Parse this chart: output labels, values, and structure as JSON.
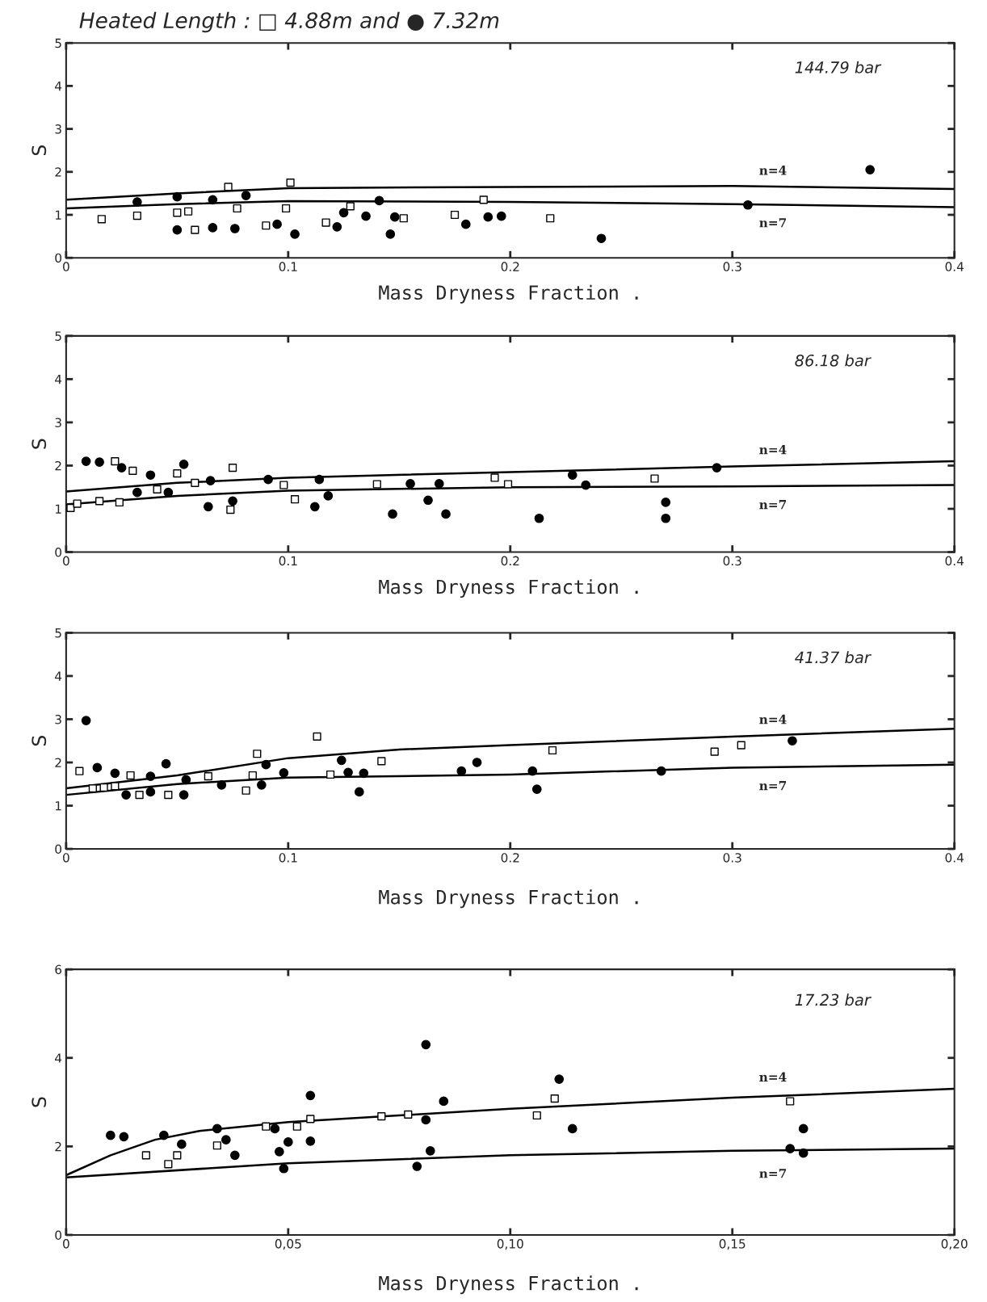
{
  "chart_data": [
    {
      "type": "scatter",
      "title": "Heated Length : □ 4.88m and ● 7.32m",
      "xlabel": "Mass Dryness Fraction .",
      "ylabel": "S",
      "annotations": [
        "144.79 bar"
      ],
      "xlim": [
        0,
        0.4
      ],
      "xticks": [
        0,
        0.1,
        0.2,
        0.3,
        0.4
      ],
      "ylim": [
        0,
        5
      ],
      "yticks": [
        0,
        1,
        2,
        3,
        4,
        5
      ],
      "grid": false,
      "legend": false,
      "series": [
        {
          "marker": "square",
          "color": "#000000",
          "x": [
            0.016,
            0.032,
            0.05,
            0.055,
            0.058,
            0.073,
            0.077,
            0.09,
            0.099,
            0.101,
            0.117,
            0.128,
            0.152,
            0.175,
            0.188,
            0.218
          ],
          "values": [
            0.9,
            0.98,
            1.05,
            1.08,
            0.65,
            1.65,
            1.15,
            0.75,
            1.15,
            1.75,
            0.82,
            1.2,
            0.92,
            1.0,
            1.35,
            0.92
          ]
        },
        {
          "marker": "circle",
          "color": "#000000",
          "x": [
            0.032,
            0.05,
            0.05,
            0.066,
            0.066,
            0.076,
            0.081,
            0.095,
            0.103,
            0.122,
            0.125,
            0.135,
            0.141,
            0.146,
            0.148,
            0.18,
            0.19,
            0.196,
            0.241,
            0.307,
            0.362
          ],
          "values": [
            1.3,
            1.42,
            0.65,
            1.35,
            0.7,
            0.68,
            1.45,
            0.78,
            0.55,
            0.72,
            1.05,
            0.97,
            1.33,
            0.55,
            0.95,
            0.78,
            0.95,
            0.97,
            0.45,
            1.23,
            2.05
          ]
        },
        {
          "type": "line",
          "name": "n=4",
          "color": "#000000",
          "x": [
            0,
            0.05,
            0.1,
            0.2,
            0.3,
            0.4
          ],
          "values": [
            1.35,
            1.5,
            1.62,
            1.65,
            1.67,
            1.6
          ]
        },
        {
          "type": "line",
          "name": "n=7",
          "color": "#000000",
          "x": [
            0,
            0.05,
            0.1,
            0.2,
            0.3,
            0.4
          ],
          "values": [
            1.15,
            1.25,
            1.32,
            1.3,
            1.25,
            1.18
          ]
        }
      ]
    },
    {
      "type": "scatter",
      "xlabel": "Mass Dryness Fraction .",
      "ylabel": "S",
      "annotations": [
        "86.18 bar"
      ],
      "xlim": [
        0,
        0.4
      ],
      "xticks": [
        0,
        0.1,
        0.2,
        0.3,
        0.4
      ],
      "ylim": [
        0,
        5
      ],
      "yticks": [
        0,
        1,
        2,
        3,
        4,
        5
      ],
      "grid": false,
      "legend": false,
      "series": [
        {
          "marker": "square",
          "color": "#000000",
          "x": [
            0.002,
            0.005,
            0.015,
            0.022,
            0.024,
            0.03,
            0.041,
            0.05,
            0.058,
            0.074,
            0.075,
            0.098,
            0.103,
            0.14,
            0.193,
            0.199,
            0.265
          ],
          "values": [
            1.02,
            1.12,
            1.18,
            2.1,
            1.15,
            1.88,
            1.45,
            1.82,
            1.6,
            0.98,
            1.95,
            1.55,
            1.22,
            1.57,
            1.72,
            1.57,
            1.7
          ]
        },
        {
          "marker": "circle",
          "color": "#000000",
          "x": [
            0.009,
            0.015,
            0.025,
            0.032,
            0.038,
            0.046,
            0.053,
            0.064,
            0.065,
            0.075,
            0.091,
            0.112,
            0.114,
            0.118,
            0.147,
            0.155,
            0.163,
            0.168,
            0.171,
            0.213,
            0.228,
            0.234,
            0.27,
            0.27,
            0.293
          ],
          "values": [
            2.1,
            2.08,
            1.95,
            1.38,
            1.78,
            1.38,
            2.03,
            1.05,
            1.65,
            1.18,
            1.68,
            1.05,
            1.68,
            1.3,
            0.88,
            1.58,
            1.2,
            1.58,
            0.88,
            0.78,
            1.78,
            1.55,
            0.78,
            1.15,
            1.95
          ]
        },
        {
          "type": "line",
          "name": "n=4",
          "color": "#000000",
          "x": [
            0,
            0.05,
            0.1,
            0.2,
            0.3,
            0.4
          ],
          "values": [
            1.4,
            1.6,
            1.72,
            1.85,
            1.98,
            2.1
          ]
        },
        {
          "type": "line",
          "name": "n=7",
          "color": "#000000",
          "x": [
            0,
            0.05,
            0.1,
            0.2,
            0.3,
            0.4
          ],
          "values": [
            1.1,
            1.3,
            1.42,
            1.5,
            1.52,
            1.55
          ]
        }
      ]
    },
    {
      "type": "scatter",
      "xlabel": "Mass Dryness Fraction .",
      "ylabel": "S",
      "annotations": [
        "41.37 bar"
      ],
      "xlim": [
        0,
        0.4
      ],
      "xticks": [
        0,
        0.1,
        0.2,
        0.3,
        0.4
      ],
      "ylim": [
        0,
        5
      ],
      "yticks": [
        0,
        1,
        2,
        3,
        4,
        5
      ],
      "grid": false,
      "legend": false,
      "series": [
        {
          "marker": "square",
          "color": "#000000",
          "x": [
            0.006,
            0.012,
            0.017,
            0.022,
            0.029,
            0.033,
            0.046,
            0.064,
            0.081,
            0.084,
            0.086,
            0.113,
            0.119,
            0.142,
            0.219,
            0.292,
            0.304
          ],
          "values": [
            1.8,
            1.4,
            1.42,
            1.45,
            1.7,
            1.25,
            1.25,
            1.68,
            1.35,
            1.7,
            2.2,
            2.6,
            1.72,
            2.03,
            2.28,
            2.25,
            2.4
          ]
        },
        {
          "marker": "circle",
          "color": "#000000",
          "x": [
            0.009,
            0.014,
            0.022,
            0.027,
            0.038,
            0.038,
            0.045,
            0.053,
            0.054,
            0.07,
            0.088,
            0.09,
            0.098,
            0.124,
            0.127,
            0.132,
            0.134,
            0.178,
            0.185,
            0.21,
            0.212,
            0.268,
            0.327
          ],
          "values": [
            2.97,
            1.88,
            1.75,
            1.25,
            1.68,
            1.32,
            1.97,
            1.25,
            1.6,
            1.48,
            1.48,
            1.95,
            1.76,
            2.05,
            1.77,
            1.32,
            1.75,
            1.8,
            2.0,
            1.8,
            1.38,
            1.8,
            2.5
          ]
        },
        {
          "type": "line",
          "name": "n=4",
          "color": "#000000",
          "x": [
            0,
            0.05,
            0.1,
            0.15,
            0.2,
            0.3,
            0.4
          ],
          "values": [
            1.4,
            1.7,
            2.1,
            2.3,
            2.4,
            2.6,
            2.78
          ]
        },
        {
          "type": "line",
          "name": "n=7",
          "color": "#000000",
          "x": [
            0,
            0.05,
            0.1,
            0.2,
            0.3,
            0.4
          ],
          "values": [
            1.25,
            1.5,
            1.65,
            1.72,
            1.88,
            1.95
          ]
        }
      ]
    },
    {
      "type": "scatter",
      "xlabel": "Mass Dryness Fraction .",
      "ylabel": "S",
      "annotations": [
        "17.23 bar"
      ],
      "xlim": [
        0,
        0.2
      ],
      "xticks": [
        0,
        {
          "value": 0.05,
          "label": "0,05"
        },
        {
          "value": 0.1,
          "label": "0,10"
        },
        {
          "value": 0.15,
          "label": "0,15"
        },
        {
          "value": 0.2,
          "label": "0,20"
        }
      ],
      "ylim": [
        0,
        6
      ],
      "yticks": [
        0,
        2,
        4,
        6
      ],
      "grid": false,
      "legend": false,
      "series": [
        {
          "marker": "square",
          "color": "#000000",
          "x": [
            0.018,
            0.023,
            0.025,
            0.034,
            0.045,
            0.052,
            0.055,
            0.071,
            0.077,
            0.106,
            0.11,
            0.163
          ],
          "values": [
            1.8,
            1.6,
            1.8,
            2.02,
            2.45,
            2.45,
            2.62,
            2.68,
            2.72,
            2.7,
            3.08,
            3.02
          ]
        },
        {
          "marker": "circle",
          "color": "#000000",
          "x": [
            0.01,
            0.013,
            0.022,
            0.026,
            0.034,
            0.036,
            0.038,
            0.047,
            0.048,
            0.049,
            0.05,
            0.055,
            0.055,
            0.079,
            0.081,
            0.081,
            0.082,
            0.085,
            0.111,
            0.114,
            0.163,
            0.166,
            0.166
          ],
          "values": [
            2.25,
            2.22,
            2.25,
            2.05,
            2.4,
            2.15,
            1.8,
            2.4,
            1.88,
            1.5,
            2.1,
            3.15,
            2.12,
            1.55,
            4.3,
            2.6,
            1.9,
            3.02,
            3.52,
            2.4,
            1.95,
            2.4,
            1.85
          ]
        },
        {
          "type": "line",
          "name": "n=4",
          "color": "#000000",
          "x": [
            0,
            0.01,
            0.02,
            0.03,
            0.05,
            0.1,
            0.15,
            0.2
          ],
          "values": [
            1.35,
            1.8,
            2.15,
            2.35,
            2.55,
            2.85,
            3.1,
            3.3
          ]
        },
        {
          "type": "line",
          "name": "n=7",
          "color": "#000000",
          "x": [
            0,
            0.05,
            0.1,
            0.15,
            0.2
          ],
          "values": [
            1.3,
            1.62,
            1.8,
            1.9,
            1.95
          ]
        }
      ]
    }
  ]
}
